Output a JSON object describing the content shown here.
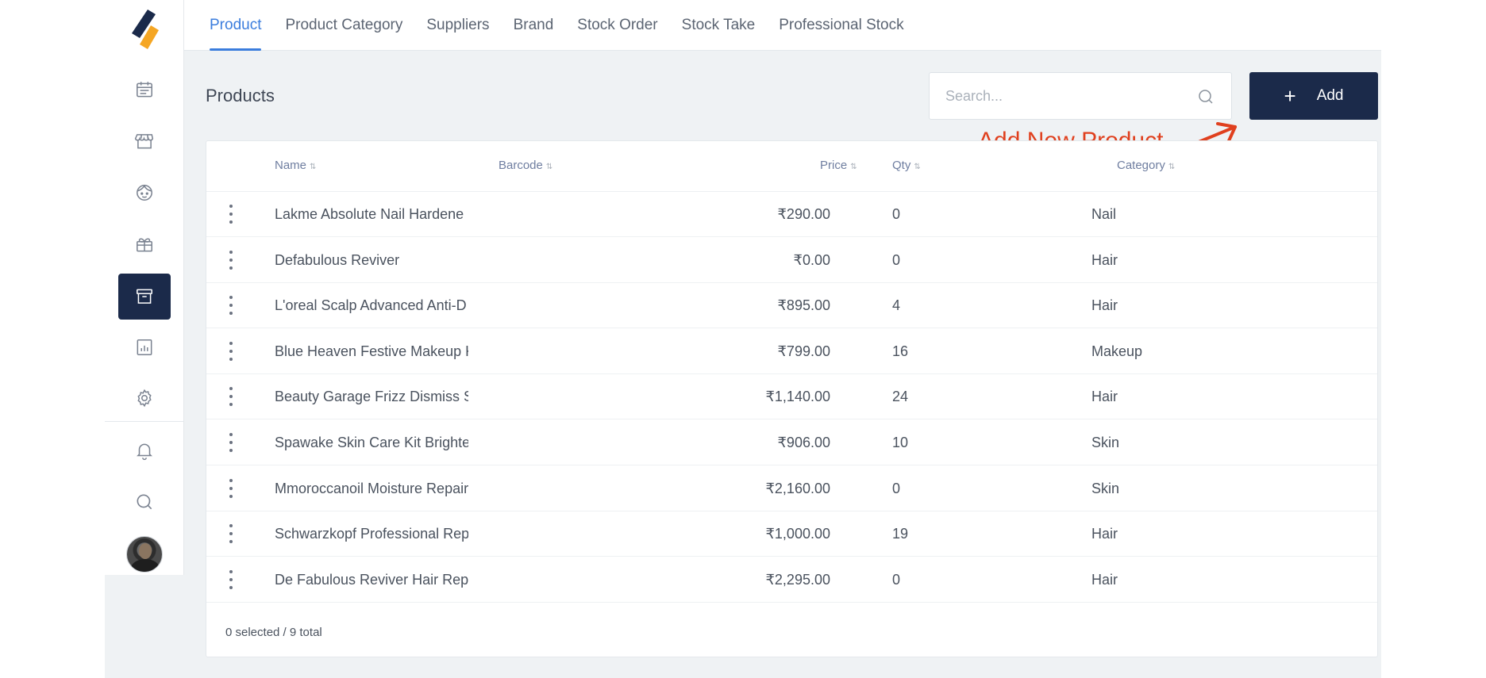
{
  "tabs": [
    {
      "label": "Product",
      "active": true
    },
    {
      "label": "Product Category",
      "active": false
    },
    {
      "label": "Suppliers",
      "active": false
    },
    {
      "label": "Brand",
      "active": false
    },
    {
      "label": "Stock Order",
      "active": false
    },
    {
      "label": "Stock Take",
      "active": false
    },
    {
      "label": "Professional Stock",
      "active": false
    }
  ],
  "sidebar": {
    "items": [
      {
        "icon": "calendar-icon"
      },
      {
        "icon": "store-icon"
      },
      {
        "icon": "client-face-icon"
      },
      {
        "icon": "gift-icon"
      },
      {
        "icon": "archive-box-icon",
        "active": true
      },
      {
        "icon": "report-chart-icon"
      },
      {
        "icon": "settings-gear-icon"
      },
      {
        "icon": "bell-icon"
      },
      {
        "icon": "search-icon"
      }
    ]
  },
  "page": {
    "title": "Products",
    "search_placeholder": "Search...",
    "add_label": "Add",
    "annotation": "Add New Product"
  },
  "table": {
    "headers": {
      "name": "Name",
      "barcode": "Barcode",
      "price": "Price",
      "qty": "Qty",
      "category": "Category"
    },
    "rows": [
      {
        "name": "Lakme Absolute Nail Hardene",
        "price": "₹290.00",
        "qty": "0",
        "category": "Nail"
      },
      {
        "name": "Defabulous Reviver",
        "price": "₹0.00",
        "qty": "0",
        "category": "Hair"
      },
      {
        "name": "L'oreal Scalp Advanced Anti-D",
        "price": "₹895.00",
        "qty": "4",
        "category": "Hair"
      },
      {
        "name": "Blue Heaven Festive Makeup K",
        "price": "₹799.00",
        "qty": "16",
        "category": "Makeup"
      },
      {
        "name": "Beauty Garage Frizz Dismiss S",
        "price": "₹1,140.00",
        "qty": "24",
        "category": "Hair"
      },
      {
        "name": "Spawake Skin Care Kit Brighte",
        "price": "₹906.00",
        "qty": "10",
        "category": "Skin"
      },
      {
        "name": "Mmoroccanoil Moisture Repair",
        "price": "₹2,160.00",
        "qty": "0",
        "category": "Skin"
      },
      {
        "name": "Schwarzkopf Professional Rep",
        "price": "₹1,000.00",
        "qty": "19",
        "category": "Hair"
      },
      {
        "name": "De Fabulous Reviver Hair Repa",
        "price": "₹2,295.00",
        "qty": "0",
        "category": "Hair"
      }
    ],
    "footer": "0 selected / 9 total"
  },
  "colors": {
    "accent": "#3b7ddd",
    "navy": "#1b2a4a",
    "annotation": "#e0401e"
  }
}
